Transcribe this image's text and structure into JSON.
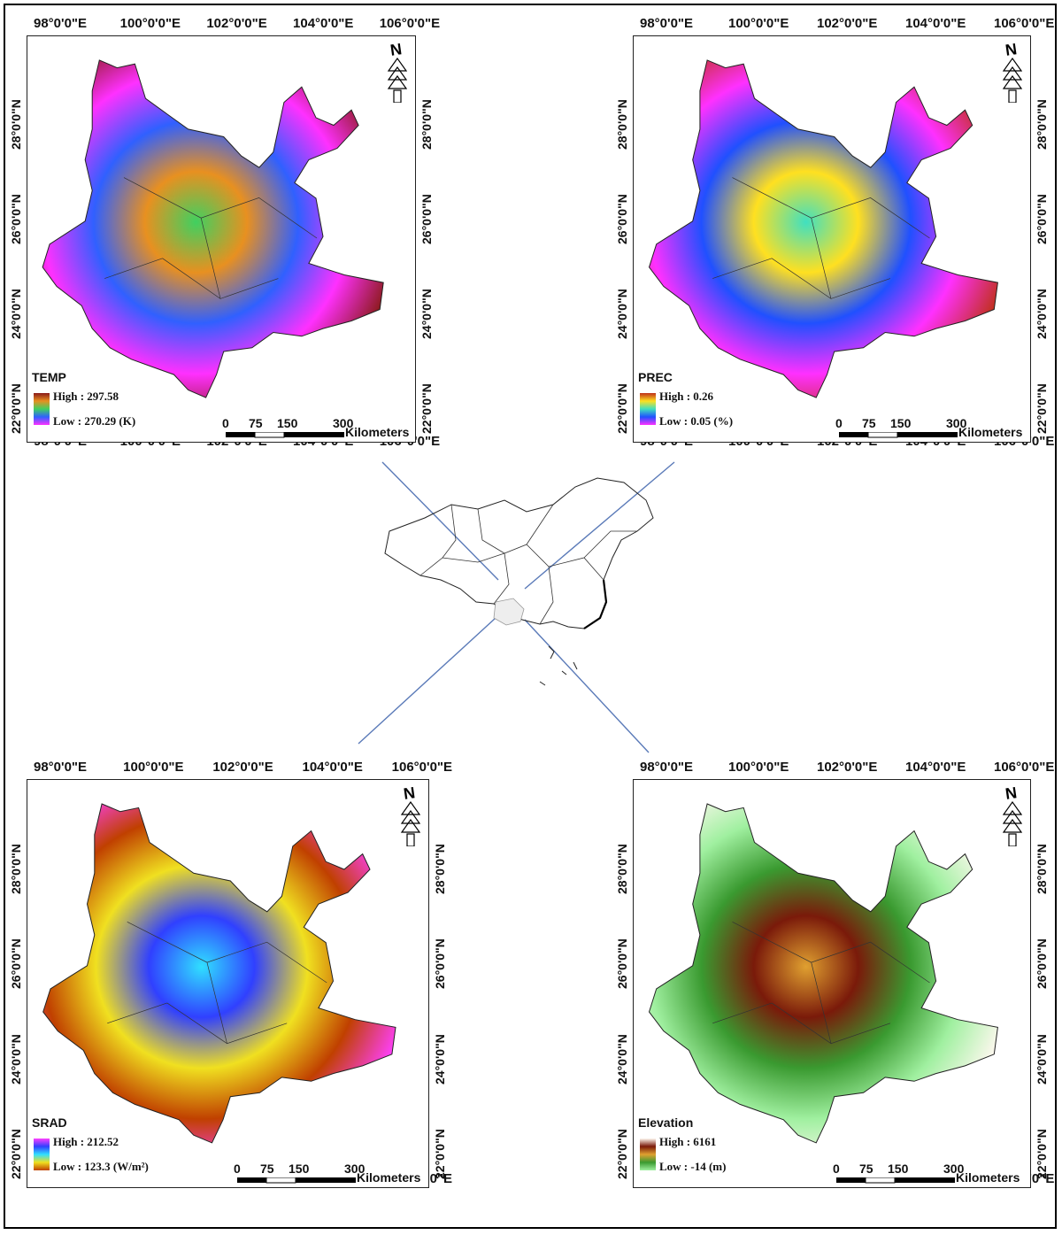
{
  "lon_ticks": [
    "98°0'0\"E",
    "100°0'0\"E",
    "102°0'0\"E",
    "104°0'0\"E",
    "106°0'0\"E"
  ],
  "lat_ticks": [
    "22°0'0\"N",
    "24°0'0\"N",
    "26°0'0\"N",
    "28°0'0\"N"
  ],
  "north_label": "N",
  "scale": {
    "ticks": [
      "0",
      "75",
      "150",
      "300"
    ],
    "unit": "Kilometers"
  },
  "panels": [
    {
      "id": "temp",
      "title": "TEMP",
      "high": "High : 297.58",
      "low": "Low : 270.29 (K)",
      "ramp": [
        "#8b1a1a",
        "#e89020",
        "#40d060",
        "#3060ff",
        "#ff30ff"
      ]
    },
    {
      "id": "prec",
      "title": "PREC",
      "high": "High : 0.26",
      "low": "Low : 0.05 (%)",
      "ramp": [
        "#c0301a",
        "#ffe020",
        "#40e0c0",
        "#2050ff",
        "#ff30ff"
      ]
    },
    {
      "id": "srad",
      "title": "SRAD",
      "high": "High : 212.52",
      "low": "Low : 123.3 (W/m²)",
      "ramp": [
        "#ff40ff",
        "#3040ff",
        "#30e0ff",
        "#f0e020",
        "#c04000"
      ]
    },
    {
      "id": "elev",
      "title": "Elevation",
      "high": "High : 6161",
      "low": "Low : -14 (m)",
      "ramp": [
        "#fff8f0",
        "#7a1a0a",
        "#e0a030",
        "#3a9a30",
        "#a0f0a0"
      ]
    }
  ]
}
